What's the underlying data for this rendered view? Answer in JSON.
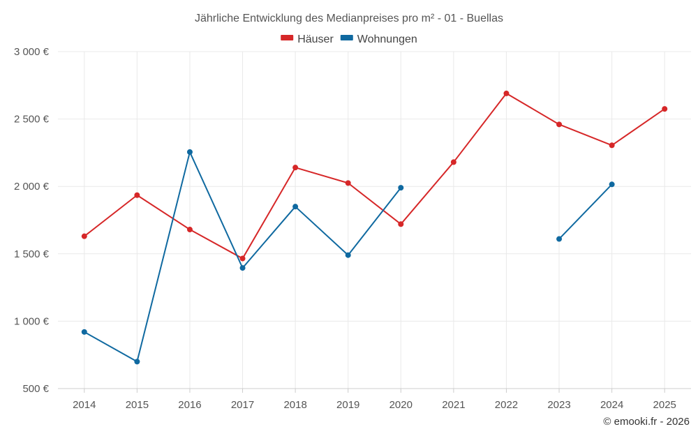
{
  "chart_data": {
    "type": "line",
    "title": "Jährliche Entwicklung des Medianpreises pro m² - 01 - Buellas",
    "categories": [
      "2014",
      "2015",
      "2016",
      "2017",
      "2018",
      "2019",
      "2020",
      "2021",
      "2022",
      "2023",
      "2024",
      "2025"
    ],
    "ylim": [
      500,
      3000
    ],
    "yticks": [
      500,
      1000,
      1500,
      2000,
      2500,
      3000
    ],
    "ytick_labels": [
      "500 €",
      "1 000 €",
      "1 500 €",
      "2 000 €",
      "2 500 €",
      "3 000 €"
    ],
    "grid": true,
    "legend_position": "top-center",
    "series": [
      {
        "name": "Häuser",
        "color": "#d62728",
        "values": [
          1630,
          1935,
          1680,
          1465,
          2140,
          2025,
          1720,
          2180,
          2690,
          2460,
          2305,
          2575
        ]
      },
      {
        "name": "Wohnungen",
        "color": "#0f69a0",
        "values": [
          920,
          700,
          2255,
          1395,
          1850,
          1490,
          1990,
          null,
          null,
          1610,
          2015,
          null
        ]
      }
    ],
    "credit": "© emooki.fr - 2026"
  }
}
